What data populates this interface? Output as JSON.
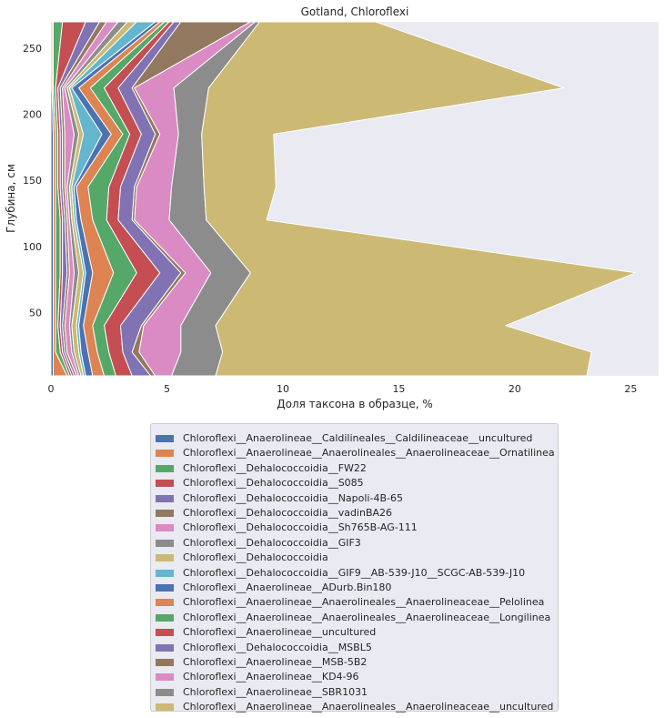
{
  "chart_data": {
    "type": "area",
    "orientation": "horizontal-stacked",
    "title": "Gotland, Chloroflexi",
    "xlabel": "Доля таксона в образце, %",
    "ylabel": "Глубина, см",
    "xlim": [
      0,
      26.2
    ],
    "ylim": [
      2,
      270
    ],
    "xticks": [
      "0",
      "5",
      "10",
      "15",
      "20",
      "25"
    ],
    "yticks": [
      "50",
      "100",
      "150",
      "200",
      "250"
    ],
    "depths": [
      2,
      20,
      40,
      80,
      120,
      145,
      185,
      220,
      270
    ],
    "series": [
      {
        "name": "Chloroflexi__Anaerolineae__Caldilineales__Caldilineaceae__uncultured",
        "color": "#4c72b0",
        "values": [
          0.1,
          0.1,
          0.1,
          0.1,
          0.1,
          0.1,
          0.1,
          0.05,
          0.05
        ]
      },
      {
        "name": "Chloroflexi__Anaerolineae__Anaerolineales__Anaerolineaceae__Ornatilinea",
        "color": "#dd8452",
        "values": [
          0.6,
          0.1,
          0.1,
          0.1,
          0.1,
          0.1,
          0.1,
          0.05,
          0.05
        ]
      },
      {
        "name": "Chloroflexi__Dehalococcoidia__FW22",
        "color": "#55a868",
        "values": [
          0.1,
          0.2,
          0.1,
          0.2,
          0.2,
          0.1,
          0.1,
          0.1,
          0.4
        ]
      },
      {
        "name": "Chloroflexi__Dehalococcoidia__S085",
        "color": "#c44e52",
        "values": [
          0.1,
          0.1,
          0.1,
          0.1,
          0.1,
          0.1,
          0.1,
          0.1,
          1.0
        ]
      },
      {
        "name": "Chloroflexi__Dehalococcoidia__Napoli-4B-65",
        "color": "#8172b3",
        "values": [
          0.1,
          0.1,
          0.1,
          0.2,
          0.1,
          0.1,
          0.1,
          0.1,
          0.6
        ]
      },
      {
        "name": "Chloroflexi__Dehalococcoidia__vadinBA26",
        "color": "#937860",
        "values": [
          0.1,
          0.1,
          0.1,
          0.1,
          0.1,
          0.1,
          0.1,
          0.1,
          0.3
        ]
      },
      {
        "name": "Chloroflexi__Dehalococcoidia__Sh765B-AG-111",
        "color": "#da8bc3",
        "values": [
          0.1,
          0.2,
          0.2,
          0.2,
          0.1,
          0.1,
          0.4,
          0.1,
          0.5
        ]
      },
      {
        "name": "Chloroflexi__Dehalococcoidia__GIF3",
        "color": "#8c8c8c",
        "values": [
          0.1,
          0.1,
          0.1,
          0.2,
          0.1,
          0.1,
          0.2,
          0.1,
          0.4
        ]
      },
      {
        "name": "Chloroflexi__Dehalococcoidia",
        "color": "#ccb974",
        "values": [
          0.1,
          0.2,
          0.2,
          0.2,
          0.1,
          0.1,
          0.2,
          0.1,
          0.4
        ]
      },
      {
        "name": "Chloroflexi__Dehalococcoidia__GIF9__AB-539-J10__SCGC-AB-539-J10",
        "color": "#64b5cd",
        "values": [
          0.1,
          0.1,
          0.1,
          0.1,
          0.1,
          0.1,
          0.8,
          0.1,
          0.8
        ]
      },
      {
        "name": "Chloroflexi__Anaerolineae__ADurb.Bin180",
        "color": "#4c72b0",
        "values": [
          0.3,
          0.3,
          0.2,
          0.3,
          0.2,
          0.1,
          0.4,
          0.3,
          0.2
        ]
      },
      {
        "name": "Chloroflexi__Anaerolineae__Anaerolineales__Anaerolineaceae__Pelolinea",
        "color": "#dd8452",
        "values": [
          0.5,
          0.4,
          0.4,
          0.9,
          0.5,
          0.5,
          0.5,
          0.5,
          0.2
        ]
      },
      {
        "name": "Chloroflexi__Anaerolineae__Anaerolineales__Anaerolineaceae__Longilinea",
        "color": "#55a868",
        "values": [
          0.5,
          0.5,
          0.5,
          1.0,
          0.6,
          0.9,
          0.3,
          0.6,
          0.2
        ]
      },
      {
        "name": "Chloroflexi__Anaerolineae__uncultured",
        "color": "#c44e52",
        "values": [
          0.7,
          0.6,
          0.7,
          1.0,
          0.5,
          0.5,
          0.5,
          0.6,
          0.2
        ]
      },
      {
        "name": "Chloroflexi__Dehalococcoidia__MSBL5",
        "color": "#8172b3",
        "values": [
          0.8,
          0.4,
          0.9,
          0.9,
          0.6,
          0.6,
          0.6,
          0.6,
          0.3
        ]
      },
      {
        "name": "Chloroflexi__Anaerolineae__MSB-5B2",
        "color": "#937860",
        "values": [
          0.2,
          0.3,
          0.1,
          0.2,
          0.1,
          0.1,
          0.2,
          0.1,
          3.0
        ]
      },
      {
        "name": "Chloroflexi__Anaerolineae__KD4-96",
        "color": "#da8bc3",
        "values": [
          0.7,
          1.8,
          1.6,
          1.1,
          1.5,
          1.5,
          0.8,
          1.7,
          0.2
        ]
      },
      {
        "name": "Chloroflexi__Anaerolineae__SBR1031",
        "color": "#8c8c8c",
        "values": [
          1.9,
          1.8,
          1.5,
          1.7,
          1.6,
          1.4,
          1.0,
          1.5,
          0.2
        ]
      },
      {
        "name": "Chloroflexi__Anaerolineae__Anaerolineales__Anaerolineaceae__uncultured",
        "color": "#ccb974",
        "values": [
          16.0,
          15.9,
          12.5,
          16.6,
          2.6,
          3.1,
          3.1,
          15.3,
          5.0
        ]
      }
    ]
  }
}
